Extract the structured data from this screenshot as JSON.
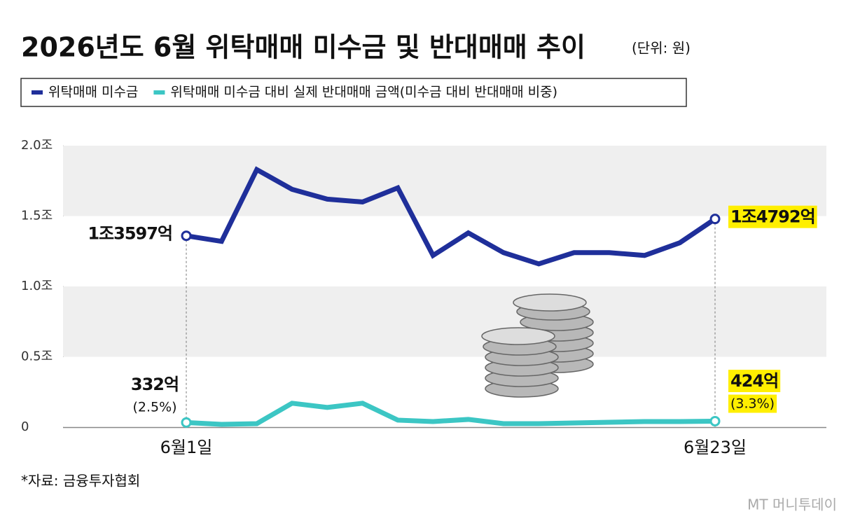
{
  "chart_data": {
    "type": "line",
    "title": "2026년도 6월 위탁매매 미수금 및 반대매매 추이",
    "subtitle": "(단위: 원)",
    "source": "*자료: 금융투자협회",
    "watermark": "MT 머니투데이",
    "categories": [
      "6월1일",
      null,
      null,
      null,
      null,
      null,
      null,
      null,
      null,
      null,
      null,
      null,
      null,
      null,
      null,
      "6월23일"
    ],
    "series": [
      {
        "name": "위탁매매 미수금",
        "color": "#1f2f9a",
        "values": [
          1.3597,
          1.32,
          1.83,
          1.69,
          1.62,
          1.6,
          1.7,
          1.22,
          1.38,
          1.24,
          1.16,
          1.24,
          1.24,
          1.22,
          1.31,
          1.4792
        ],
        "value_labels": [
          "1조3597억",
          null,
          null,
          null,
          null,
          null,
          null,
          null,
          null,
          null,
          null,
          null,
          null,
          null,
          null,
          "1조4792억"
        ]
      },
      {
        "name": "위탁매매 미수금 대비 실제 반대매매 금액(미수금 대비 반대매매 비중)",
        "color": "#3cc6c4",
        "values": [
          0.0332,
          0.02,
          0.025,
          0.17,
          0.14,
          0.17,
          0.05,
          0.04,
          0.055,
          0.025,
          0.025,
          0.03,
          0.035,
          0.04,
          0.04,
          0.0424
        ],
        "value_labels": [
          "332억",
          null,
          null,
          null,
          null,
          null,
          null,
          null,
          null,
          null,
          null,
          null,
          null,
          null,
          null,
          "424억"
        ],
        "ratio_labels": [
          "(2.5%)",
          null,
          null,
          null,
          null,
          null,
          null,
          null,
          null,
          null,
          null,
          null,
          null,
          null,
          null,
          "(3.3%)"
        ]
      }
    ],
    "ylim": [
      0,
      2
    ],
    "yticks": [
      0,
      {
        "value": 0.5,
        "label": "0.5조"
      },
      {
        "value": 1,
        "label": "1.0조"
      },
      {
        "value": 1.5,
        "label": "1.5조"
      },
      {
        "value": 2,
        "label": "2.0조"
      }
    ],
    "grid": "bands",
    "highlight_color": "#ffef00"
  }
}
